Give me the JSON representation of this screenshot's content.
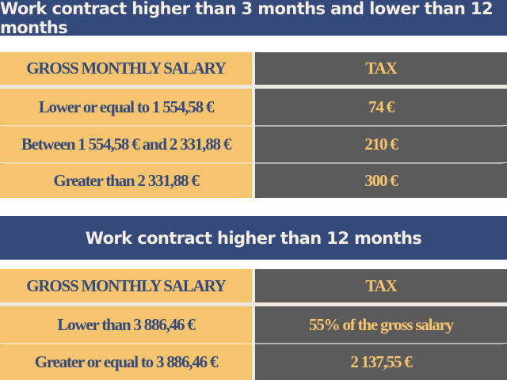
{
  "section1": {
    "title": "Work contract higher than 3 months and lower than 12 months",
    "header": {
      "salary": "GROSS MONTHLY SALARY",
      "tax": "TAX"
    },
    "rows": [
      {
        "salary": "Lower or equal to 1 554,58 €",
        "tax": "74 €"
      },
      {
        "salary": "Between 1 554,58 € and 2 331,88 €",
        "tax": "210 €"
      },
      {
        "salary": "Greater than 2 331,88 €",
        "tax": "300 €"
      }
    ]
  },
  "section2": {
    "title": "Work contract higher than 12 months",
    "header": {
      "salary": "GROSS MONTHLY SALARY",
      "tax": "TAX"
    },
    "rows": [
      {
        "salary": "Lower than 3 886,46 €",
        "tax": "55% of the gross salary"
      },
      {
        "salary": "Greater or equal to 3 886,46 €",
        "tax": "2 137,55 €"
      }
    ]
  }
}
